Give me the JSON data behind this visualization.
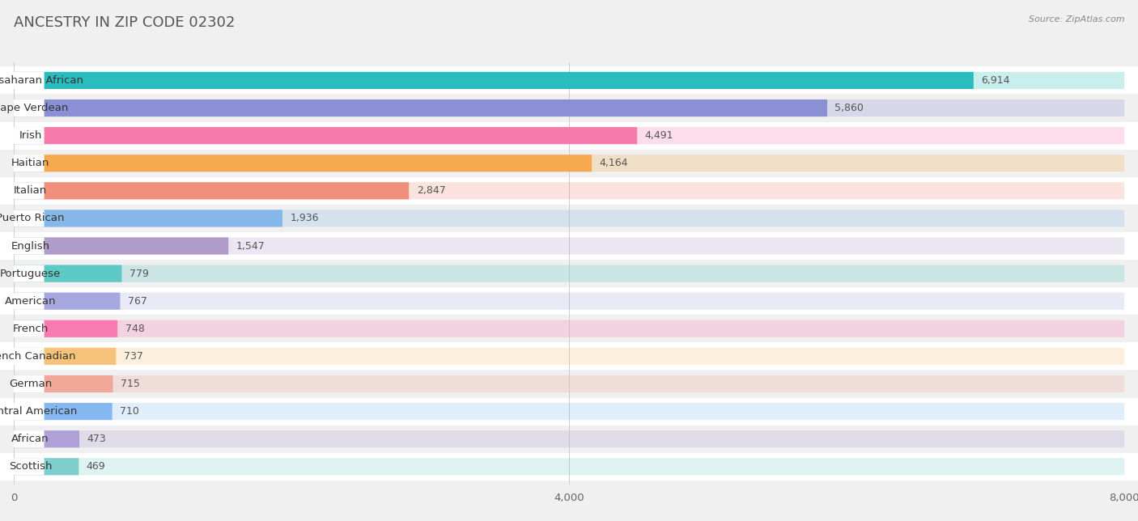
{
  "title": "ANCESTRY IN ZIP CODE 02302",
  "source": "Source: ZipAtlas.com",
  "categories": [
    "Subsaharan African",
    "Cape Verdean",
    "Irish",
    "Haitian",
    "Italian",
    "Puerto Rican",
    "English",
    "Portuguese",
    "American",
    "French",
    "French Canadian",
    "German",
    "Central American",
    "African",
    "Scottish"
  ],
  "values": [
    6914,
    5860,
    4491,
    4164,
    2847,
    1936,
    1547,
    779,
    767,
    748,
    737,
    715,
    710,
    473,
    469
  ],
  "colors": [
    "#2bbcbe",
    "#8b8fd4",
    "#f87aaa",
    "#f5aa50",
    "#f0907a",
    "#85b8e8",
    "#b09cc8",
    "#5dc8c4",
    "#a8a8e0",
    "#f87ab0",
    "#f5c47a",
    "#f0a898",
    "#85b8f0",
    "#b0a0d8",
    "#7ecece"
  ],
  "xlim": [
    0,
    8000
  ],
  "xticks": [
    0,
    4000,
    8000
  ],
  "background_color": "#f0f0f0",
  "row_colors": [
    "#ffffff",
    "#f0f0f0"
  ],
  "title_fontsize": 13,
  "source_fontsize": 8,
  "label_fontsize": 9.5,
  "value_fontsize": 9
}
